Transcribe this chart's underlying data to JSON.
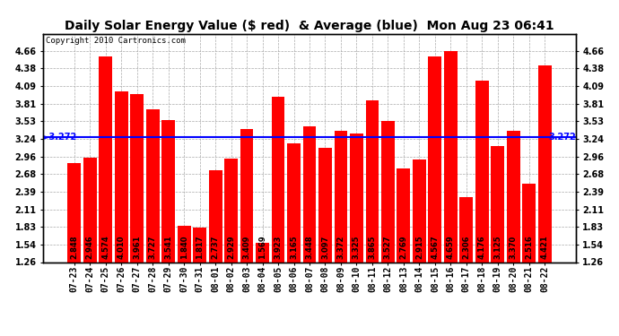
{
  "title": "Daily Solar Energy Value ($ red)  & Average (blue)  Mon Aug 23 06:41",
  "copyright": "Copyright 2010 Cartronics.com",
  "average": 3.272,
  "average_label": "3.272",
  "bar_color": "#FF0000",
  "avg_line_color": "#0000FF",
  "background_color": "#FFFFFF",
  "plot_bg_color": "#FFFFFF",
  "grid_color": "#AAAAAA",
  "categories": [
    "07-23",
    "07-24",
    "07-25",
    "07-26",
    "07-27",
    "07-28",
    "07-29",
    "07-30",
    "07-31",
    "08-01",
    "08-02",
    "08-03",
    "08-04",
    "08-05",
    "08-06",
    "08-07",
    "08-08",
    "08-09",
    "08-10",
    "08-11",
    "08-12",
    "08-13",
    "08-14",
    "08-15",
    "08-16",
    "08-17",
    "08-18",
    "08-19",
    "08-20",
    "08-21",
    "08-22"
  ],
  "values": [
    2.848,
    2.946,
    4.574,
    4.01,
    3.961,
    3.727,
    3.541,
    1.84,
    1.817,
    2.737,
    2.929,
    3.409,
    1.569,
    3.923,
    3.165,
    3.448,
    3.097,
    3.372,
    3.325,
    3.865,
    3.527,
    2.769,
    2.915,
    4.567,
    4.659,
    2.306,
    4.176,
    3.125,
    3.37,
    2.516,
    4.421
  ],
  "ylim_min": 1.26,
  "ylim_max": 4.94,
  "yticks": [
    1.26,
    1.54,
    1.83,
    2.11,
    2.39,
    2.68,
    2.96,
    3.24,
    3.53,
    3.81,
    4.09,
    4.38,
    4.66
  ],
  "title_fontsize": 10,
  "tick_fontsize": 7,
  "bar_label_fontsize": 6,
  "copyright_fontsize": 6.5,
  "avg_label_fontsize": 7
}
